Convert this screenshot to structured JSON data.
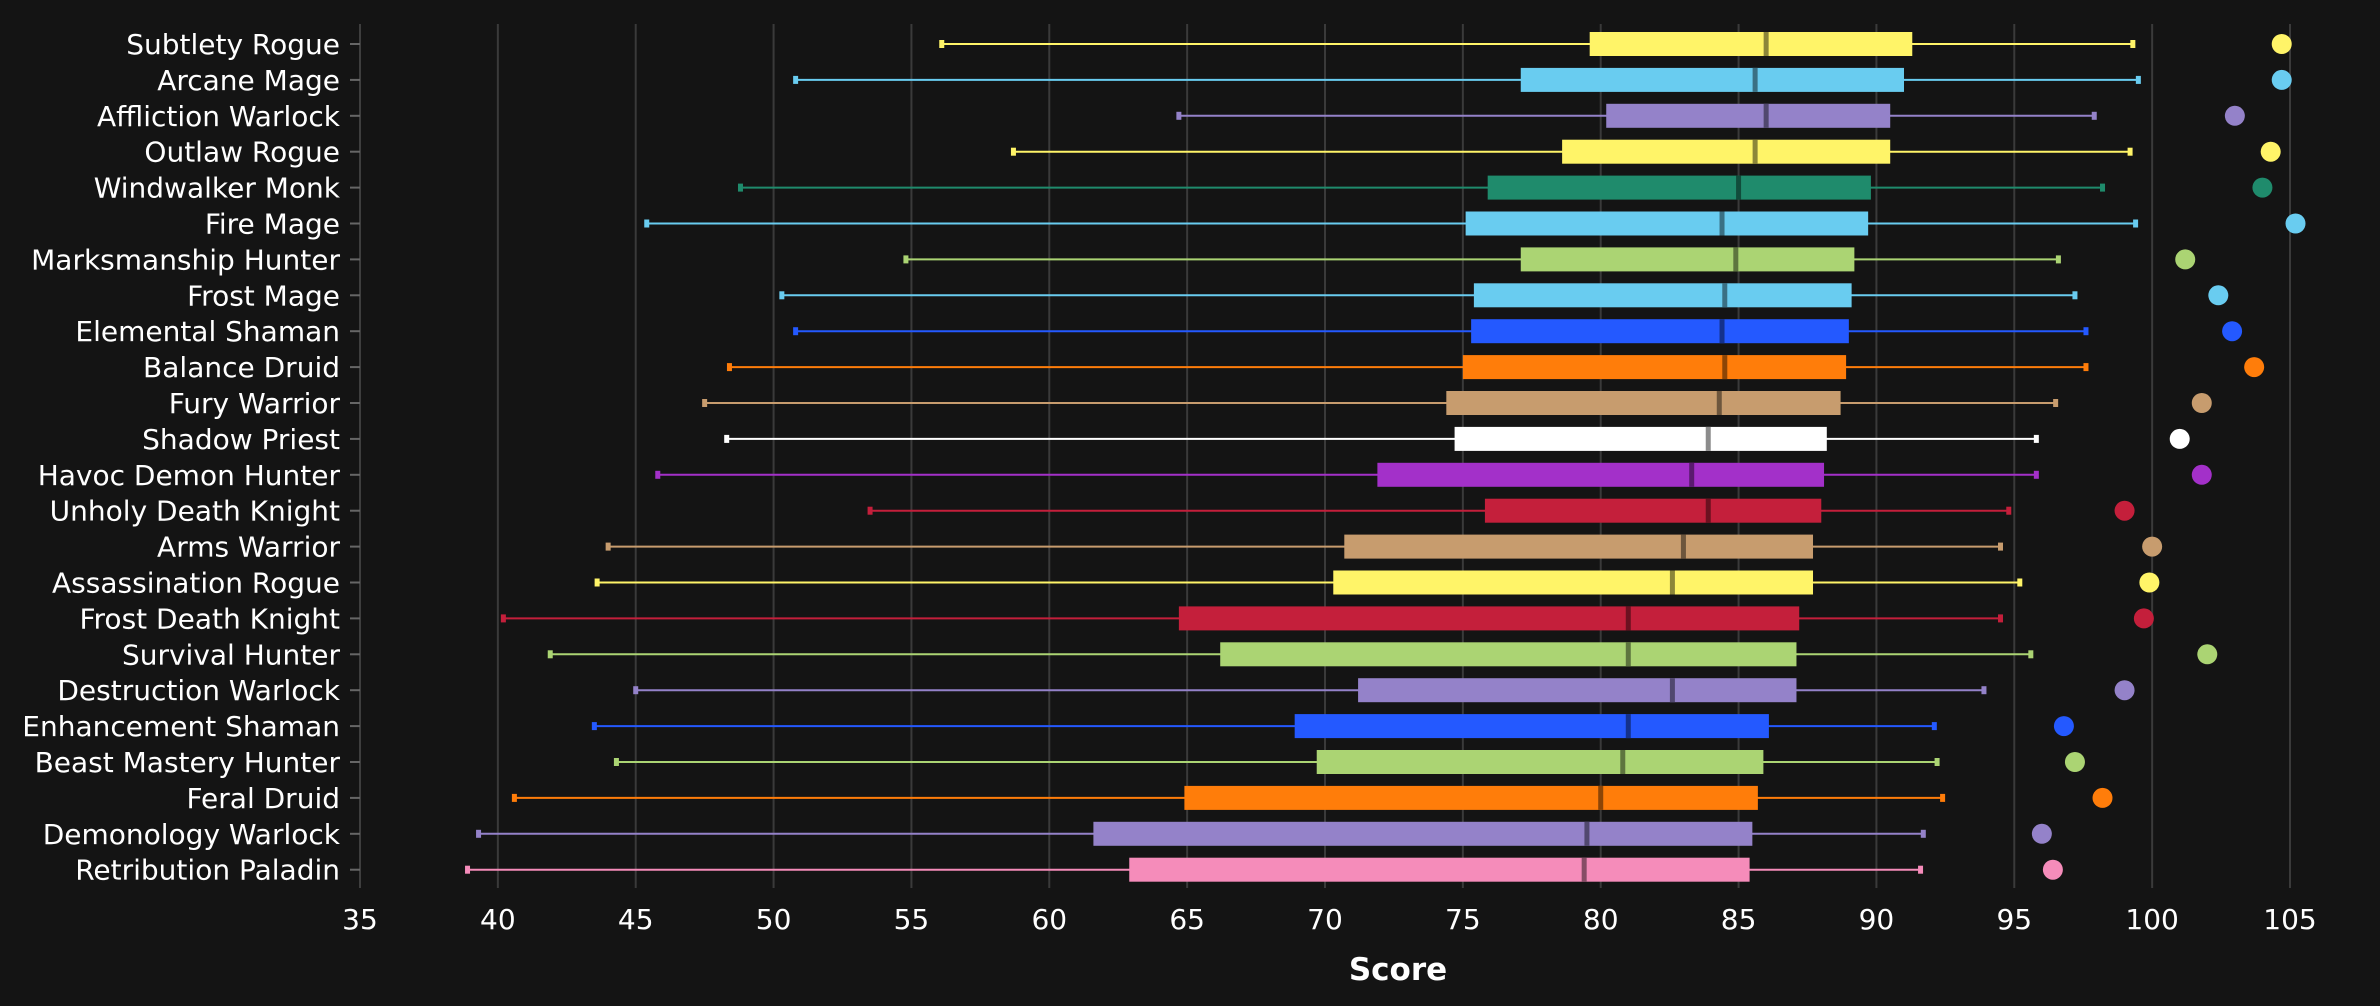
{
  "chart_data": {
    "type": "box",
    "xlabel": "Score",
    "xlim": [
      35,
      105
    ],
    "xticks": [
      35,
      40,
      45,
      50,
      55,
      60,
      65,
      70,
      75,
      80,
      85,
      90,
      95,
      100,
      105
    ],
    "grid": "vertical",
    "legend": "none",
    "series": [
      {
        "name": "Subtlety Rogue",
        "color": "#FFF468",
        "min": 56.1,
        "q1": 79.6,
        "median": 86.0,
        "q3": 91.3,
        "max": 99.3,
        "top": 104.7
      },
      {
        "name": "Arcane Mage",
        "color": "#69CCF0",
        "min": 50.8,
        "q1": 77.1,
        "median": 85.6,
        "q3": 91.0,
        "max": 99.5,
        "top": 104.7
      },
      {
        "name": "Affliction Warlock",
        "color": "#9482C9",
        "min": 64.7,
        "q1": 80.2,
        "median": 86.0,
        "q3": 90.5,
        "max": 97.9,
        "top": 103.0
      },
      {
        "name": "Outlaw Rogue",
        "color": "#FFF468",
        "min": 58.7,
        "q1": 78.6,
        "median": 85.6,
        "q3": 90.5,
        "max": 99.2,
        "top": 104.3
      },
      {
        "name": "Windwalker Monk",
        "color": "#1F8B6C",
        "min": 48.8,
        "q1": 75.9,
        "median": 85.0,
        "q3": 89.8,
        "max": 98.2,
        "top": 104.0
      },
      {
        "name": "Fire Mage",
        "color": "#69CCF0",
        "min": 45.4,
        "q1": 75.1,
        "median": 84.4,
        "q3": 89.7,
        "max": 99.4,
        "top": 105.2
      },
      {
        "name": "Marksmanship Hunter",
        "color": "#ABD473",
        "min": 54.8,
        "q1": 77.1,
        "median": 84.9,
        "q3": 89.2,
        "max": 96.6,
        "top": 101.2
      },
      {
        "name": "Frost Mage",
        "color": "#69CCF0",
        "min": 50.3,
        "q1": 75.4,
        "median": 84.5,
        "q3": 89.1,
        "max": 97.2,
        "top": 102.4
      },
      {
        "name": "Elemental Shaman",
        "color": "#2459FF",
        "min": 50.8,
        "q1": 75.3,
        "median": 84.4,
        "q3": 89.0,
        "max": 97.6,
        "top": 102.9
      },
      {
        "name": "Balance Druid",
        "color": "#FF7D0A",
        "min": 48.4,
        "q1": 75.0,
        "median": 84.5,
        "q3": 88.9,
        "max": 97.6,
        "top": 103.7
      },
      {
        "name": "Fury Warrior",
        "color": "#C79C6E",
        "min": 47.5,
        "q1": 74.4,
        "median": 84.3,
        "q3": 88.7,
        "max": 96.5,
        "top": 101.8
      },
      {
        "name": "Shadow Priest",
        "color": "#FFFFFF",
        "min": 48.3,
        "q1": 74.7,
        "median": 83.9,
        "q3": 88.2,
        "max": 95.8,
        "top": 101.0
      },
      {
        "name": "Havoc Demon Hunter",
        "color": "#A330C9",
        "min": 45.8,
        "q1": 71.9,
        "median": 83.3,
        "q3": 88.1,
        "max": 95.8,
        "top": 101.8
      },
      {
        "name": "Unholy Death Knight",
        "color": "#C41F3B",
        "min": 53.5,
        "q1": 75.8,
        "median": 83.9,
        "q3": 88.0,
        "max": 94.8,
        "top": 99.0
      },
      {
        "name": "Arms Warrior",
        "color": "#C79C6E",
        "min": 44.0,
        "q1": 70.7,
        "median": 83.0,
        "q3": 87.7,
        "max": 94.5,
        "top": 100.0
      },
      {
        "name": "Assassination Rogue",
        "color": "#FFF468",
        "min": 43.6,
        "q1": 70.3,
        "median": 82.6,
        "q3": 87.7,
        "max": 95.2,
        "top": 99.9
      },
      {
        "name": "Frost Death Knight",
        "color": "#C41F3B",
        "min": 40.2,
        "q1": 64.7,
        "median": 81.0,
        "q3": 87.2,
        "max": 94.5,
        "top": 99.7
      },
      {
        "name": "Survival Hunter",
        "color": "#ABD473",
        "min": 41.9,
        "q1": 66.2,
        "median": 81.0,
        "q3": 87.1,
        "max": 95.6,
        "top": 102.0
      },
      {
        "name": "Destruction Warlock",
        "color": "#9482C9",
        "min": 45.0,
        "q1": 71.2,
        "median": 82.6,
        "q3": 87.1,
        "max": 93.9,
        "top": 99.0
      },
      {
        "name": "Enhancement Shaman",
        "color": "#2459FF",
        "min": 43.5,
        "q1": 68.9,
        "median": 81.0,
        "q3": 86.1,
        "max": 92.1,
        "top": 96.8
      },
      {
        "name": "Beast Mastery Hunter",
        "color": "#ABD473",
        "min": 44.3,
        "q1": 69.7,
        "median": 80.8,
        "q3": 85.9,
        "max": 92.2,
        "top": 97.2
      },
      {
        "name": "Feral Druid",
        "color": "#FF7D0A",
        "min": 40.6,
        "q1": 64.9,
        "median": 80.0,
        "q3": 85.7,
        "max": 92.4,
        "top": 98.2
      },
      {
        "name": "Demonology Warlock",
        "color": "#9482C9",
        "min": 39.3,
        "q1": 61.6,
        "median": 79.5,
        "q3": 85.5,
        "max": 91.7,
        "top": 96.0
      },
      {
        "name": "Retribution Paladin",
        "color": "#F58CBA",
        "min": 38.9,
        "q1": 62.9,
        "median": 79.4,
        "q3": 85.4,
        "max": 91.6,
        "top": 96.4
      }
    ]
  }
}
